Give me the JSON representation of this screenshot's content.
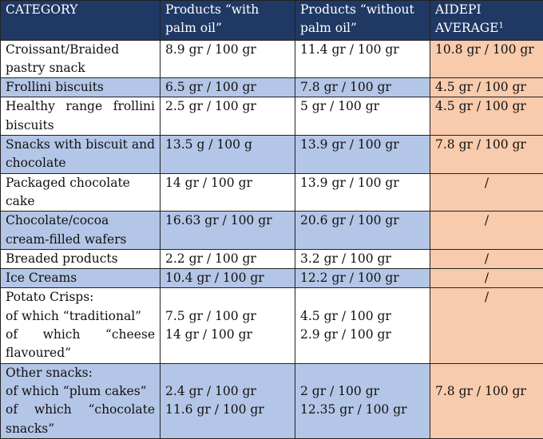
{
  "headers": {
    "category": "CATEGORY",
    "with_palm": "Products “with palm oil”",
    "without_palm": "Products “without palm oil”",
    "aidepi": "AIDEPI AVERAGE",
    "aidepi_sup": "1"
  },
  "rows": [
    {
      "category": "Croissant/Braided pastry snack",
      "with": "8.9 gr / 100 gr",
      "without": "11.4 gr / 100 gr",
      "avg": "10.8 gr / 100 gr"
    },
    {
      "category": "Frollini biscuits",
      "with": "6.5 gr / 100 gr",
      "without": "7.8 gr / 100 gr",
      "avg": "4.5 gr / 100 gr"
    },
    {
      "category": "Healthy range frollini biscuits",
      "with": "2.5 gr / 100 gr",
      "without": "5 gr / 100 gr",
      "avg": "4.5 gr / 100 gr"
    },
    {
      "category": "Snacks with biscuit and chocolate",
      "with": "13.5 g / 100 g",
      "without": "13.9 gr / 100 gr",
      "avg": "7.8 gr / 100 gr"
    },
    {
      "category": "Packaged chocolate cake",
      "with": "14 gr / 100 gr",
      "without": "13.9 gr / 100 gr",
      "avg": "/"
    },
    {
      "category": "Chocolate/cocoa cream-filled wafers",
      "with": "16.63 gr / 100 gr",
      "without": "20.6 gr / 100 gr",
      "avg": "/"
    },
    {
      "category": "Breaded products",
      "with": "2.2 gr / 100 gr",
      "without": "3.2 gr / 100 gr",
      "avg": "/"
    },
    {
      "category": "Ice Creams",
      "with": "10.4 gr / 100 gr",
      "without": "12.2 gr / 100 gr",
      "avg": "/"
    },
    {
      "category_title": "Potato Crisps:",
      "sub": [
        {
          "label": "of which “traditional”",
          "with": "7.5 gr / 100 gr",
          "without": "4.5 gr / 100 gr"
        },
        {
          "label": "of which “cheese flavoured”",
          "with": "14 gr / 100 gr",
          "without": "2.9 gr / 100 gr"
        }
      ],
      "avg": "/"
    },
    {
      "category_title": "Other snacks:",
      "sub": [
        {
          "label": "of which “plum cakes”",
          "with": "2.4 gr / 100 gr",
          "without": "2 gr / 100 gr"
        },
        {
          "label": "of which “chocolate snacks”",
          "with": "11.6 gr / 100 gr",
          "without": "12.35 gr / 100 gr"
        }
      ],
      "avg": "7.8 gr / 100 gr"
    }
  ]
}
